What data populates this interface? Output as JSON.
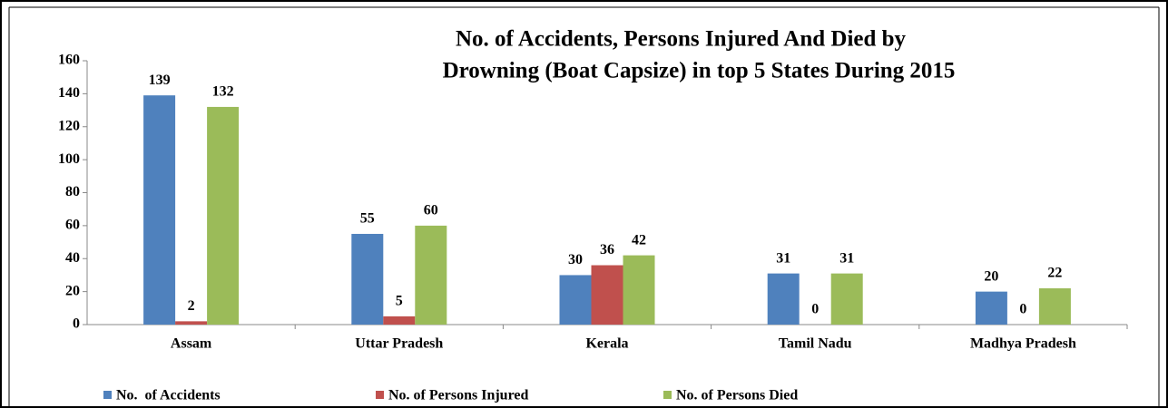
{
  "chart_data": {
    "type": "bar",
    "title": [
      "No. of Accidents, Persons Injured And Died by",
      "Drowning  (Boat Capsize) in top 5 States During 2015"
    ],
    "categories": [
      "Assam",
      "Uttar Pradesh",
      "Kerala",
      "Tamil Nadu",
      "Madhya Pradesh"
    ],
    "series": [
      {
        "name": "No.  of Accidents",
        "color": "#4f81bd",
        "values": [
          139,
          55,
          30,
          31,
          20
        ]
      },
      {
        "name": "No. of Persons Injured",
        "color": "#c0504d",
        "values": [
          2,
          5,
          36,
          0,
          0
        ]
      },
      {
        "name": "No. of Persons Died",
        "color": "#9bbb59",
        "values": [
          132,
          60,
          42,
          31,
          22
        ]
      }
    ],
    "ylim": [
      0,
      160
    ],
    "yticks": [
      0,
      20,
      40,
      60,
      80,
      100,
      120,
      140,
      160
    ],
    "grid": false,
    "legend": "bottom"
  }
}
